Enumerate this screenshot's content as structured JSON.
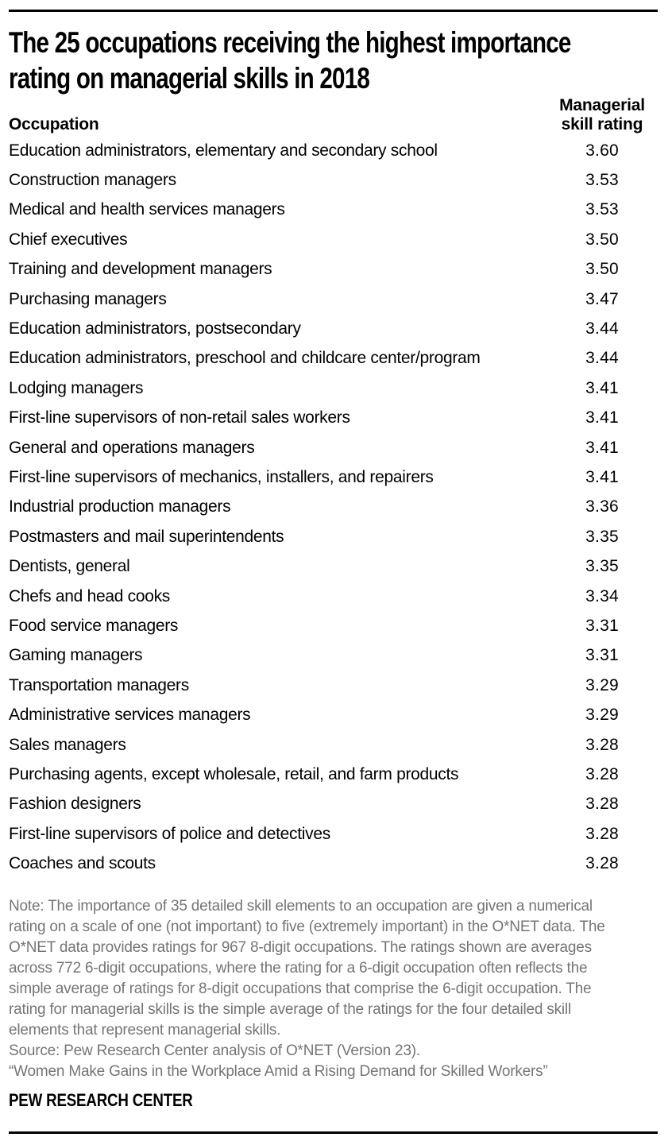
{
  "header": {
    "title_line1": "The 25 occupations receiving the highest importance",
    "title_line2": "rating on managerial skills in 2018"
  },
  "table_header": {
    "occupation_label": "Occupation",
    "rating_label_line1": "Managerial",
    "rating_label_line2": "skill rating"
  },
  "chart_data": {
    "type": "table",
    "title": "The 25 occupations receiving the highest importance rating on managerial skills in 2018",
    "columns": [
      "Occupation",
      "Managerial skill rating"
    ],
    "rating_scale": [
      1,
      5
    ],
    "rows": [
      {
        "occupation": "Education administrators, elementary and secondary school",
        "rating": "3.60"
      },
      {
        "occupation": "Construction managers",
        "rating": "3.53"
      },
      {
        "occupation": "Medical and health services managers",
        "rating": "3.53"
      },
      {
        "occupation": "Chief executives",
        "rating": "3.50"
      },
      {
        "occupation": "Training and development managers",
        "rating": "3.50"
      },
      {
        "occupation": "Purchasing managers",
        "rating": "3.47"
      },
      {
        "occupation": "Education administrators, postsecondary",
        "rating": "3.44"
      },
      {
        "occupation": "Education administrators, preschool and childcare center/program",
        "rating": "3.44"
      },
      {
        "occupation": "Lodging managers",
        "rating": "3.41"
      },
      {
        "occupation": "First-line supervisors of non-retail sales workers",
        "rating": "3.41"
      },
      {
        "occupation": "General and operations managers",
        "rating": "3.41"
      },
      {
        "occupation": "First-line supervisors of mechanics, installers, and repairers",
        "rating": "3.41"
      },
      {
        "occupation": "Industrial production managers",
        "rating": "3.36"
      },
      {
        "occupation": "Postmasters and mail superintendents",
        "rating": "3.35"
      },
      {
        "occupation": "Dentists, general",
        "rating": "3.35"
      },
      {
        "occupation": "Chefs and head cooks",
        "rating": "3.34"
      },
      {
        "occupation": "Food service managers",
        "rating": "3.31"
      },
      {
        "occupation": "Gaming managers",
        "rating": "3.31"
      },
      {
        "occupation": "Transportation managers",
        "rating": "3.29"
      },
      {
        "occupation": "Administrative services managers",
        "rating": "3.29"
      },
      {
        "occupation": "Sales managers",
        "rating": "3.28"
      },
      {
        "occupation": "Purchasing agents, except wholesale, retail, and farm products",
        "rating": "3.28"
      },
      {
        "occupation": "Fashion designers",
        "rating": "3.28"
      },
      {
        "occupation": "First-line supervisors of police and detectives",
        "rating": "3.28"
      },
      {
        "occupation": "Coaches and scouts",
        "rating": "3.28"
      }
    ]
  },
  "footnote": {
    "note_lines": [
      "Note: The importance of 35 detailed skill elements to an occupation are given a numerical",
      "rating on a scale of one (not important) to five (extremely important) in the O*NET data. The",
      "O*NET data provides ratings for 967 8-digit occupations. The ratings shown are averages",
      "across 772 6-digit occupations, where the rating for a 6-digit occupation often reflects the",
      "simple average of ratings for 8-digit occupations that comprise the 6-digit occupation. The",
      "rating for managerial skills is the simple average of the ratings for the four detailed skill",
      "elements that represent managerial skills."
    ],
    "source": "Source: Pew Research Center analysis of O*NET (Version 23).",
    "report_title": "“Women Make Gains in the Workplace Amid a Rising Demand for Skilled Workers”"
  },
  "branding": "PEW RESEARCH CENTER",
  "colors": {
    "background": "#ffffff",
    "text": "#010101",
    "note_gray": "#757575",
    "rule": "#010101"
  }
}
